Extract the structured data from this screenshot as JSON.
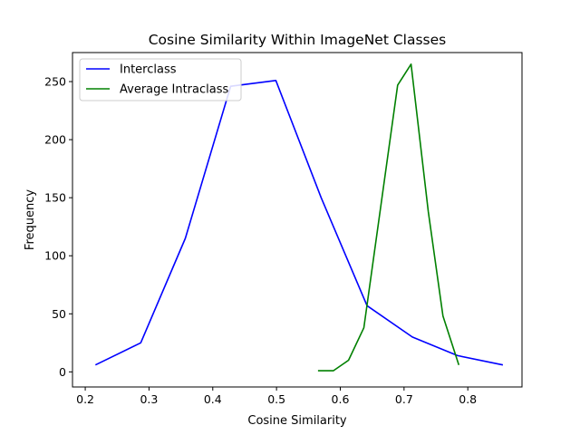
{
  "chart_data": {
    "type": "line",
    "title": "Cosine Similarity Within ImageNet Classes",
    "xlabel": "Cosine Similarity",
    "ylabel": "Frequency",
    "xlim": [
      0.18,
      0.885
    ],
    "ylim": [
      -13,
      275
    ],
    "xticks": [
      0.2,
      0.3,
      0.4,
      0.5,
      0.6,
      0.7,
      0.8
    ],
    "xtick_labels": [
      "0.2",
      "0.3",
      "0.4",
      "0.5",
      "0.6",
      "0.7",
      "0.8"
    ],
    "yticks": [
      0,
      50,
      100,
      150,
      200,
      250
    ],
    "ytick_labels": [
      "0",
      "50",
      "100",
      "150",
      "200",
      "250"
    ],
    "grid": false,
    "legend_position": "top-left",
    "series": [
      {
        "name": "Interclass",
        "color": "#0000ff",
        "x": [
          0.216,
          0.287,
          0.357,
          0.428,
          0.499,
          0.57,
          0.642,
          0.713,
          0.784,
          0.855
        ],
        "y": [
          6,
          25,
          115,
          246,
          251,
          150,
          57,
          30,
          14,
          6
        ]
      },
      {
        "name": "Average Intraclass",
        "color": "#008000",
        "x": [
          0.565,
          0.589,
          0.613,
          0.637,
          0.69,
          0.711,
          0.738,
          0.761,
          0.786
        ],
        "y": [
          1,
          1,
          10,
          38,
          247,
          265,
          138,
          48,
          6
        ]
      }
    ]
  }
}
